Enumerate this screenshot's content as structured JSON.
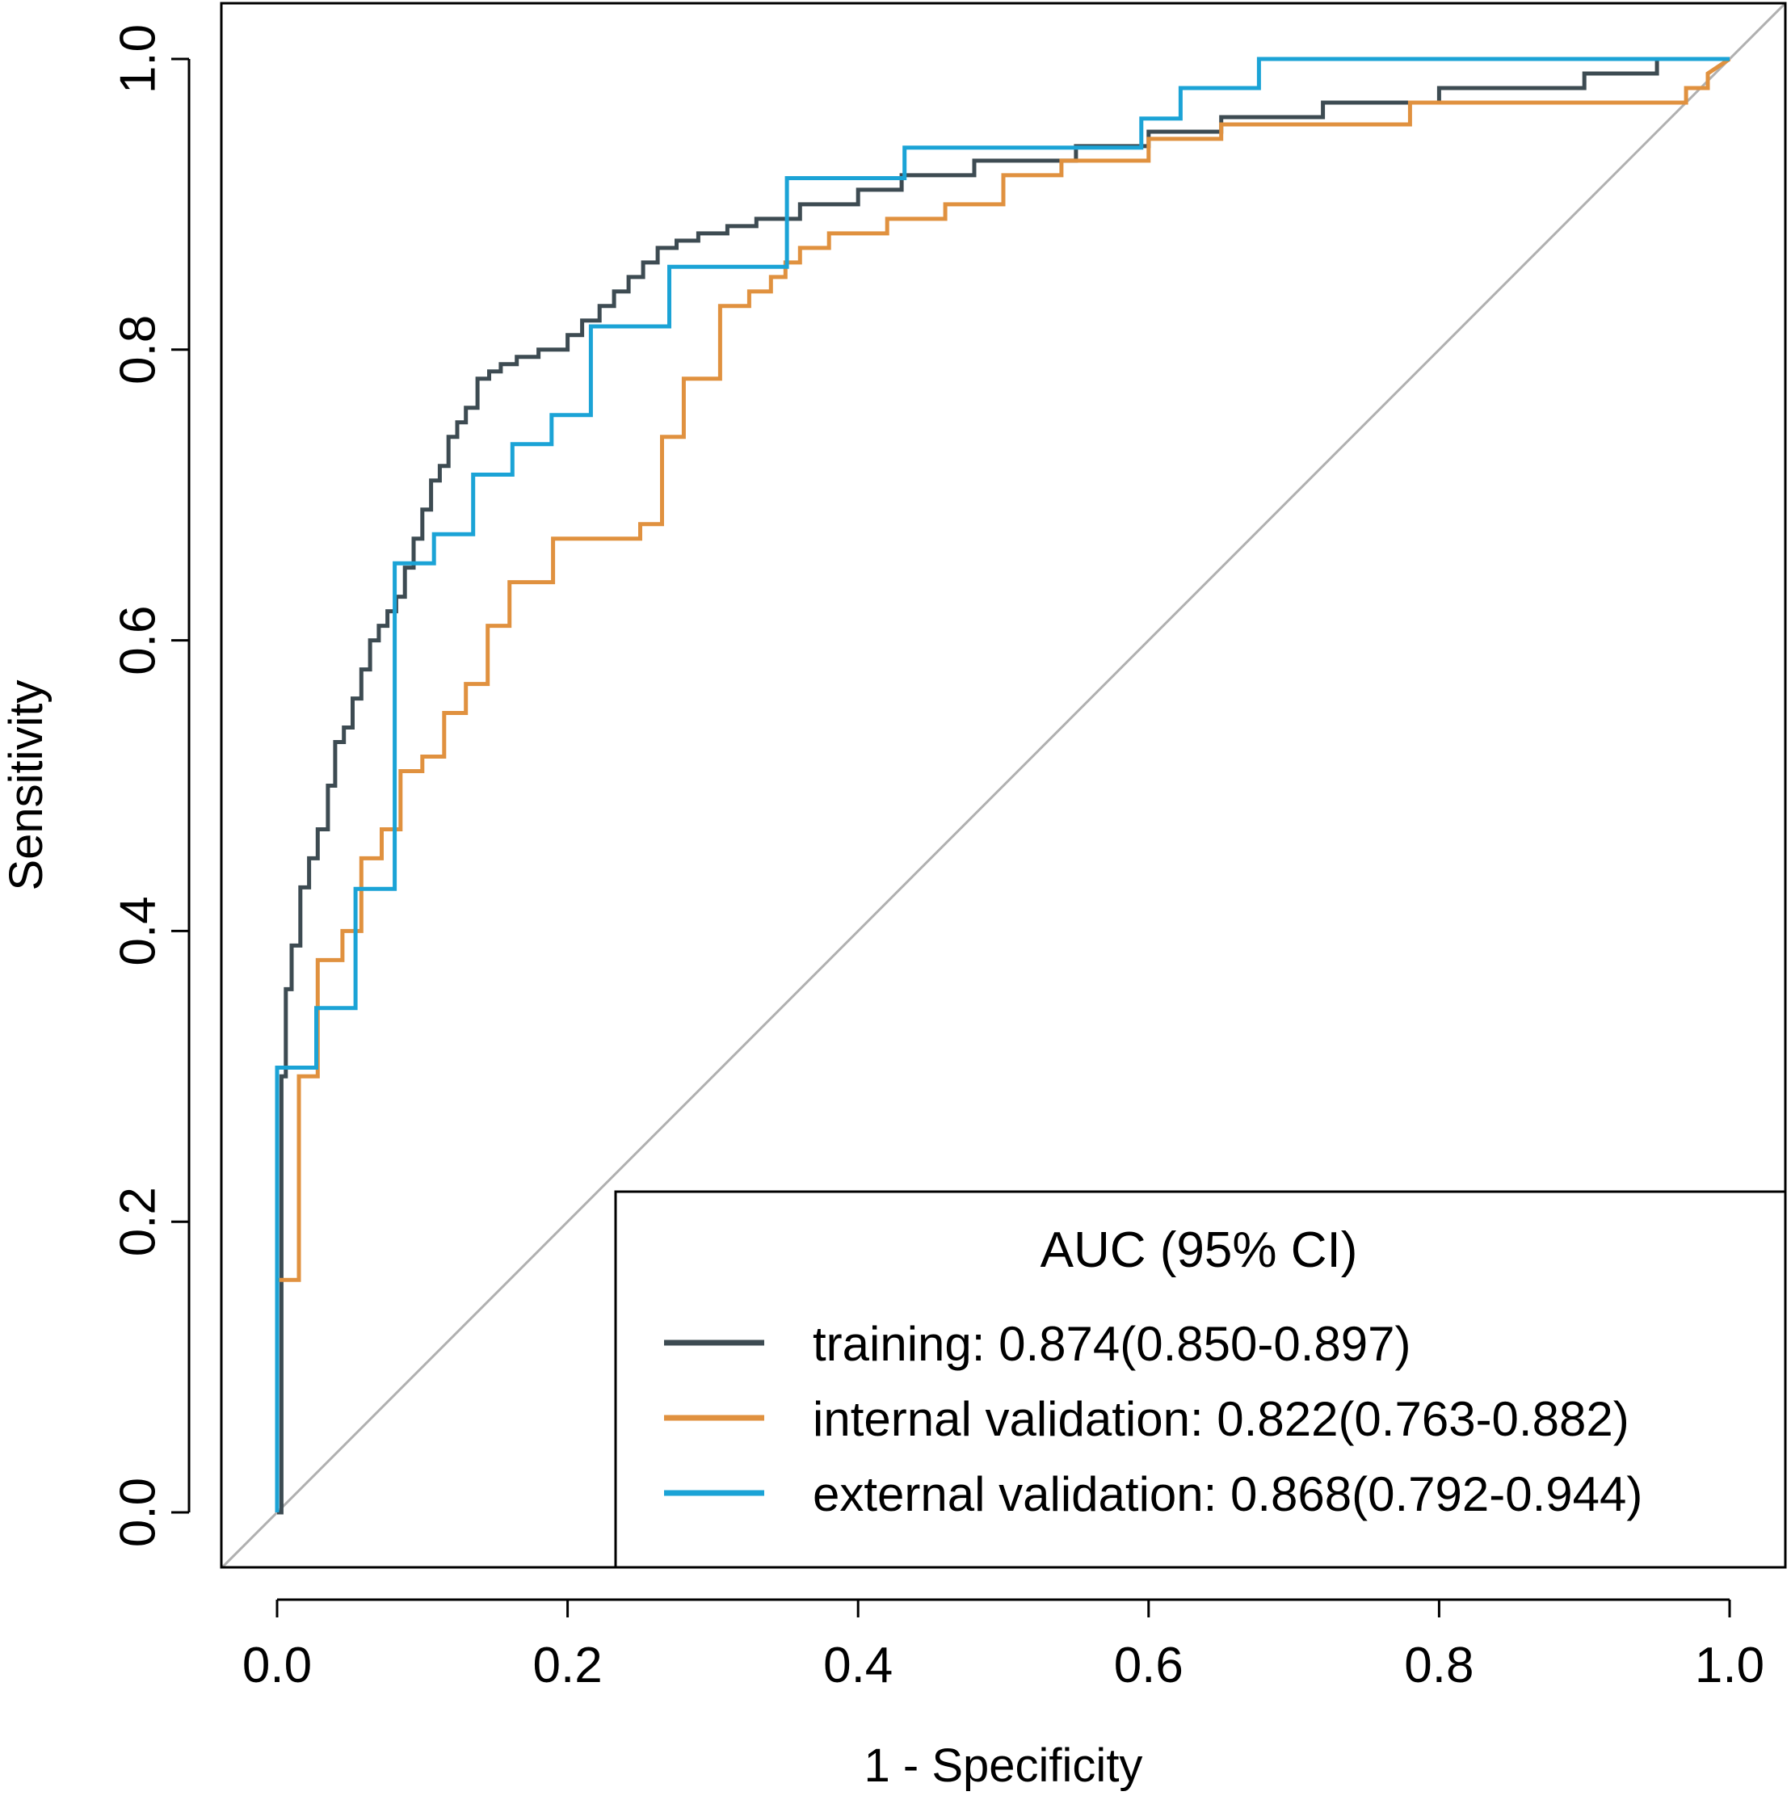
{
  "chart_data": {
    "type": "line",
    "xlabel": "1 - Specificity",
    "ylabel": "Sensitivity",
    "xlim": [
      0,
      1
    ],
    "ylim": [
      0,
      1
    ],
    "x_ticks": [
      "0.0",
      "0.2",
      "0.4",
      "0.6",
      "0.8",
      "1.0"
    ],
    "y_ticks": [
      "0.0",
      "0.2",
      "0.4",
      "0.6",
      "0.8",
      "1.0"
    ],
    "reference_line": {
      "x": [
        0,
        1
      ],
      "y": [
        0,
        1
      ],
      "color": "#b0b0b0"
    },
    "legend": {
      "title": "AUC (95% CI)",
      "placement": "bottom-right"
    },
    "series": [
      {
        "name": "training",
        "label": "training: 0.874(0.850-0.897)",
        "color": "#3d4b52",
        "x": [
          0.0,
          0.003,
          0.003,
          0.006,
          0.006,
          0.01,
          0.01,
          0.016,
          0.016,
          0.022,
          0.022,
          0.028,
          0.028,
          0.035,
          0.035,
          0.04,
          0.04,
          0.046,
          0.046,
          0.052,
          0.052,
          0.058,
          0.058,
          0.064,
          0.064,
          0.07,
          0.07,
          0.076,
          0.076,
          0.082,
          0.082,
          0.088,
          0.088,
          0.094,
          0.094,
          0.1,
          0.1,
          0.106,
          0.106,
          0.112,
          0.112,
          0.118,
          0.118,
          0.124,
          0.124,
          0.13,
          0.13,
          0.138,
          0.138,
          0.146,
          0.146,
          0.154,
          0.154,
          0.165,
          0.165,
          0.18,
          0.18,
          0.2,
          0.2,
          0.21,
          0.21,
          0.222,
          0.222,
          0.232,
          0.232,
          0.242,
          0.242,
          0.252,
          0.252,
          0.262,
          0.262,
          0.275,
          0.275,
          0.29,
          0.29,
          0.31,
          0.31,
          0.33,
          0.33,
          0.36,
          0.36,
          0.4,
          0.4,
          0.43,
          0.43,
          0.48,
          0.48,
          0.55,
          0.55,
          0.6,
          0.6,
          0.65,
          0.65,
          0.72,
          0.72,
          0.8,
          0.8,
          0.9,
          0.9,
          0.95,
          0.95,
          1.0
        ],
        "y": [
          0.0,
          0.0,
          0.3,
          0.3,
          0.36,
          0.36,
          0.39,
          0.39,
          0.43,
          0.43,
          0.45,
          0.45,
          0.47,
          0.47,
          0.5,
          0.5,
          0.53,
          0.53,
          0.54,
          0.54,
          0.56,
          0.56,
          0.58,
          0.58,
          0.6,
          0.6,
          0.61,
          0.61,
          0.62,
          0.62,
          0.63,
          0.63,
          0.65,
          0.65,
          0.67,
          0.67,
          0.69,
          0.69,
          0.71,
          0.71,
          0.72,
          0.72,
          0.74,
          0.74,
          0.75,
          0.75,
          0.76,
          0.76,
          0.78,
          0.78,
          0.785,
          0.785,
          0.79,
          0.79,
          0.795,
          0.795,
          0.8,
          0.8,
          0.81,
          0.81,
          0.82,
          0.82,
          0.83,
          0.83,
          0.84,
          0.84,
          0.85,
          0.85,
          0.86,
          0.86,
          0.87,
          0.87,
          0.875,
          0.875,
          0.88,
          0.88,
          0.885,
          0.885,
          0.89,
          0.89,
          0.9,
          0.9,
          0.91,
          0.91,
          0.92,
          0.92,
          0.93,
          0.93,
          0.94,
          0.94,
          0.95,
          0.95,
          0.96,
          0.96,
          0.97,
          0.97,
          0.98,
          0.98,
          0.99,
          0.99,
          1.0,
          1.0
        ]
      },
      {
        "name": "internal validation",
        "label": "internal validation: 0.822(0.763-0.882)",
        "color": "#e0913f",
        "x": [
          0.0,
          0.0,
          0.015,
          0.015,
          0.028,
          0.028,
          0.045,
          0.045,
          0.058,
          0.058,
          0.072,
          0.072,
          0.085,
          0.085,
          0.1,
          0.1,
          0.115,
          0.115,
          0.13,
          0.13,
          0.145,
          0.145,
          0.16,
          0.16,
          0.19,
          0.19,
          0.25,
          0.25,
          0.265,
          0.265,
          0.28,
          0.28,
          0.305,
          0.305,
          0.325,
          0.325,
          0.34,
          0.34,
          0.35,
          0.35,
          0.36,
          0.36,
          0.38,
          0.38,
          0.42,
          0.42,
          0.46,
          0.46,
          0.5,
          0.5,
          0.54,
          0.54,
          0.6,
          0.6,
          0.65,
          0.65,
          0.78,
          0.78,
          0.97,
          0.97,
          0.985,
          0.985,
          1.0
        ],
        "y": [
          0.0,
          0.16,
          0.16,
          0.3,
          0.3,
          0.38,
          0.38,
          0.4,
          0.4,
          0.45,
          0.45,
          0.47,
          0.47,
          0.51,
          0.51,
          0.52,
          0.52,
          0.55,
          0.55,
          0.57,
          0.57,
          0.61,
          0.61,
          0.64,
          0.64,
          0.67,
          0.67,
          0.68,
          0.68,
          0.74,
          0.74,
          0.78,
          0.78,
          0.83,
          0.83,
          0.84,
          0.84,
          0.85,
          0.85,
          0.86,
          0.86,
          0.87,
          0.87,
          0.88,
          0.88,
          0.89,
          0.89,
          0.9,
          0.9,
          0.92,
          0.92,
          0.93,
          0.93,
          0.945,
          0.945,
          0.955,
          0.955,
          0.97,
          0.97,
          0.98,
          0.98,
          0.99,
          1.0
        ]
      },
      {
        "name": "external validation",
        "label": "external validation: 0.868(0.792-0.944)",
        "color": "#1ba3d6",
        "x": [
          0.0,
          0.0,
          0.027,
          0.027,
          0.054,
          0.054,
          0.081,
          0.081,
          0.108,
          0.108,
          0.135,
          0.135,
          0.162,
          0.162,
          0.189,
          0.189,
          0.216,
          0.216,
          0.27,
          0.27,
          0.351,
          0.351,
          0.432,
          0.432,
          0.595,
          0.595,
          0.622,
          0.622,
          0.676,
          0.676,
          1.0
        ],
        "y": [
          0.0,
          0.306,
          0.306,
          0.347,
          0.347,
          0.429,
          0.429,
          0.653,
          0.653,
          0.673,
          0.673,
          0.714,
          0.714,
          0.735,
          0.735,
          0.755,
          0.755,
          0.816,
          0.816,
          0.857,
          0.857,
          0.918,
          0.918,
          0.939,
          0.939,
          0.959,
          0.959,
          0.98,
          0.98,
          1.0,
          1.0
        ]
      }
    ]
  }
}
